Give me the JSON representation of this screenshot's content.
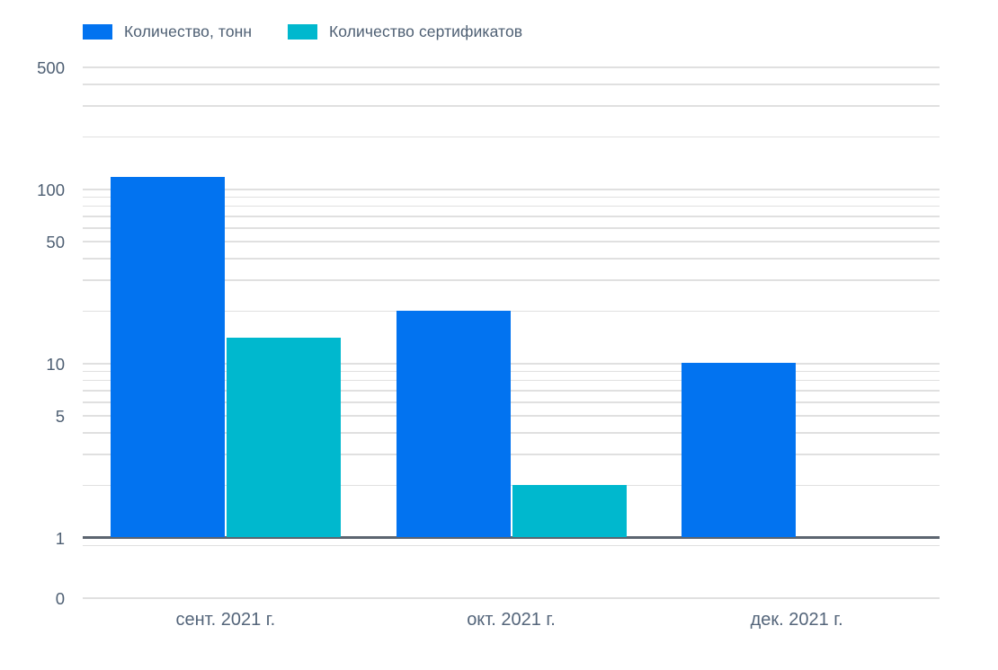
{
  "chart_data": {
    "type": "bar",
    "title": "",
    "xlabel": "",
    "ylabel": "",
    "y_scale": "log",
    "grid": true,
    "legend_position": "top-left",
    "categories": [
      "сент. 2021 г.",
      "окт. 2021 г.",
      "дек. 2021 г."
    ],
    "series": [
      {
        "name": "Количество, тонн",
        "color": "#0273F0",
        "values": [
          116,
          20,
          10
        ]
      },
      {
        "name": "Количество сертификатов",
        "color": "#00B8CE",
        "values": [
          14,
          2,
          null
        ]
      }
    ],
    "y_ticks": [
      500,
      100,
      50,
      10,
      5,
      1,
      0
    ],
    "ylim": [
      1,
      500
    ],
    "baseline_value": 1
  },
  "colors": {
    "series_blue": "#0273F0",
    "series_teal": "#00B8CE",
    "gridline": "#E0E0E0",
    "axis_baseline": "#5C6570",
    "text": "#4E5F73"
  }
}
